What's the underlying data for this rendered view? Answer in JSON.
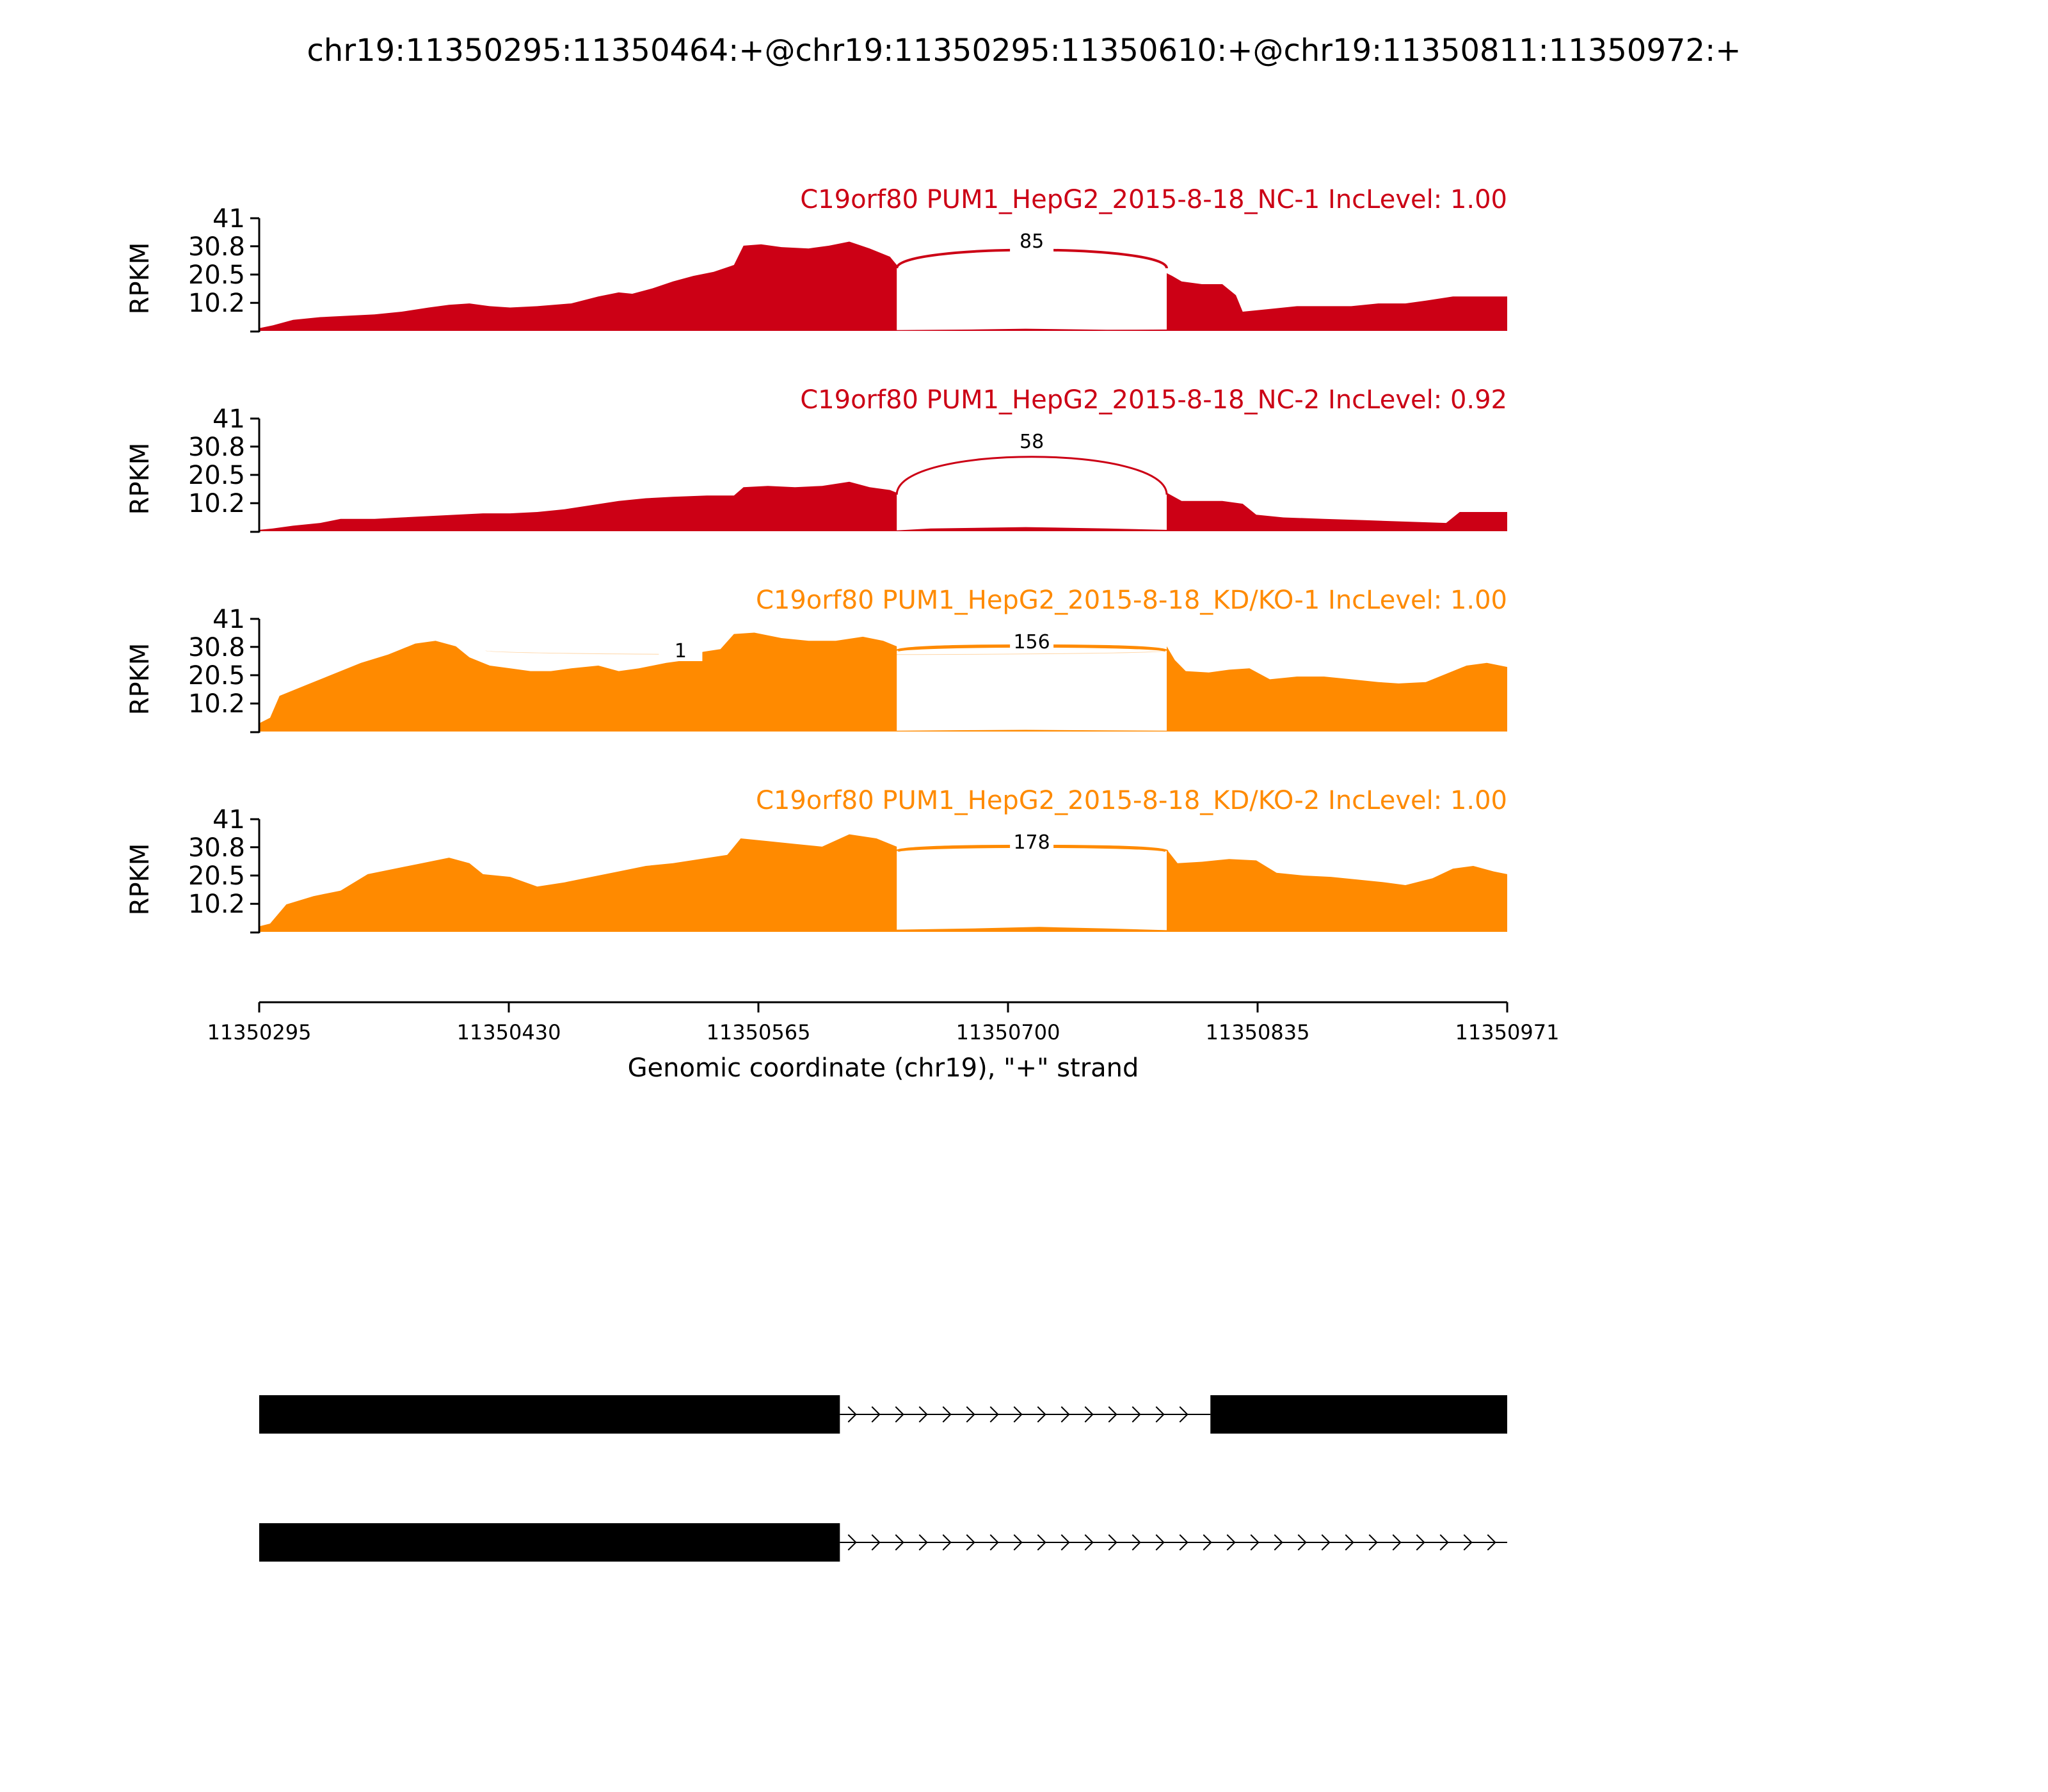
{
  "title": "chr19:11350295:11350464:+@chr19:11350295:11350610:+@chr19:11350811:11350972:+",
  "colors": {
    "nc": "#cc0015",
    "kd": "#ff8a00",
    "axis": "#000000",
    "exon": "#000000"
  },
  "chart_data": {
    "type": "area",
    "ylabel": "RPKM",
    "yticks": [
      "41",
      "30.8",
      "20.5",
      "10.2"
    ],
    "ylim": [
      0,
      41
    ],
    "xlim": [
      11350295,
      11350971
    ],
    "xlabel": "Genomic coordinate (chr19), \"+\" strand",
    "xticks": [
      "11350295",
      "11350430",
      "11350565",
      "11350700",
      "11350835",
      "11350971"
    ],
    "panels": [
      {
        "title": "C19orf80 PUM1_HepG2_2015-8-18_NC-1 IncLevel: 1.00",
        "group": "nc",
        "coverage": [
          [
            11350295,
            1
          ],
          [
            11350305,
            2
          ],
          [
            11350320,
            4
          ],
          [
            11350340,
            5
          ],
          [
            11350360,
            5.5
          ],
          [
            11350380,
            6
          ],
          [
            11350400,
            7
          ],
          [
            11350420,
            8.5
          ],
          [
            11350435,
            9.5
          ],
          [
            11350450,
            10
          ],
          [
            11350465,
            9
          ],
          [
            11350480,
            8.5
          ],
          [
            11350500,
            9
          ],
          [
            11350525,
            10
          ],
          [
            11350545,
            12.5
          ],
          [
            11350560,
            14
          ],
          [
            11350570,
            13.5
          ],
          [
            11350585,
            15.5
          ],
          [
            11350600,
            18
          ],
          [
            11350615,
            20
          ],
          [
            11350630,
            21.5
          ],
          [
            11350645,
            24
          ],
          [
            11350652,
            31
          ],
          [
            11350665,
            31.5
          ],
          [
            11350680,
            30.5
          ],
          [
            11350700,
            30
          ],
          [
            11350715,
            31
          ],
          [
            11350730,
            32.5
          ],
          [
            11350745,
            30
          ],
          [
            11350760,
            27
          ],
          [
            11350765,
            24
          ]
        ],
        "intron_coverage": [
          [
            11350765,
            0.3
          ],
          [
            11350820,
            0.5
          ],
          [
            11350860,
            0.8
          ],
          [
            11350920,
            0.4
          ],
          [
            11350964,
            0.5
          ]
        ],
        "coverage_tail": [
          [
            11350964,
            21
          ],
          [
            11350968,
            20
          ],
          [
            11350975,
            18
          ],
          [
            11350990,
            17
          ],
          [
            11351005,
            17
          ],
          [
            11351015,
            13
          ],
          [
            11351020,
            7
          ],
          [
            11351040,
            8
          ],
          [
            11351060,
            9
          ],
          [
            11351080,
            9
          ],
          [
            11351100,
            9
          ],
          [
            11351120,
            10
          ],
          [
            11351140,
            10
          ],
          [
            11351155,
            11
          ],
          [
            11351175,
            12.5
          ],
          [
            11351195,
            12.5
          ],
          [
            11351215,
            12.5
          ]
        ],
        "junctions": [
          {
            "start": 11350765,
            "end": 11350964,
            "count": "85",
            "weight": 4
          }
        ]
      },
      {
        "title": "C19orf80 PUM1_HepG2_2015-8-18_NC-2 IncLevel: 0.92",
        "group": "nc",
        "coverage": [
          [
            11350295,
            0.5
          ],
          [
            11350305,
            1
          ],
          [
            11350320,
            2
          ],
          [
            11350340,
            3
          ],
          [
            11350355,
            4.5
          ],
          [
            11350380,
            4.5
          ],
          [
            11350400,
            5
          ],
          [
            11350420,
            5.5
          ],
          [
            11350440,
            6
          ],
          [
            11350460,
            6.5
          ],
          [
            11350480,
            6.5
          ],
          [
            11350500,
            7
          ],
          [
            11350520,
            8
          ],
          [
            11350540,
            9.5
          ],
          [
            11350560,
            11
          ],
          [
            11350580,
            12
          ],
          [
            11350600,
            12.5
          ],
          [
            11350625,
            13
          ],
          [
            11350645,
            13
          ],
          [
            11350652,
            16
          ],
          [
            11350670,
            16.5
          ],
          [
            11350690,
            16
          ],
          [
            11350710,
            16.5
          ],
          [
            11350730,
            18
          ],
          [
            11350745,
            16
          ],
          [
            11350760,
            15
          ],
          [
            11350765,
            14
          ]
        ],
        "intron_coverage": [
          [
            11350765,
            0.3
          ],
          [
            11350790,
            1
          ],
          [
            11350860,
            1.5
          ],
          [
            11350920,
            1
          ],
          [
            11350964,
            0.5
          ]
        ],
        "coverage_tail": [
          [
            11350964,
            14
          ],
          [
            11350975,
            11
          ],
          [
            11350990,
            11
          ],
          [
            11351005,
            11
          ],
          [
            11351020,
            10
          ],
          [
            11351030,
            6
          ],
          [
            11351050,
            5
          ],
          [
            11351080,
            4.5
          ],
          [
            11351110,
            4
          ],
          [
            11351140,
            3.5
          ],
          [
            11351170,
            3
          ],
          [
            11351180,
            7
          ],
          [
            11351200,
            7
          ],
          [
            11351215,
            7
          ]
        ],
        "junctions": [
          {
            "start": 11350765,
            "end": 11350964,
            "count": "58",
            "weight": 3
          }
        ]
      },
      {
        "title": "C19orf80 PUM1_HepG2_2015-8-18_KD/KO-1 IncLevel: 1.00",
        "group": "kd",
        "coverage": [
          [
            11350295,
            3
          ],
          [
            11350303,
            5
          ],
          [
            11350310,
            13
          ],
          [
            11350330,
            17
          ],
          [
            11350350,
            21
          ],
          [
            11350370,
            25
          ],
          [
            11350390,
            28
          ],
          [
            11350410,
            32
          ],
          [
            11350425,
            33
          ],
          [
            11350440,
            31
          ],
          [
            11350450,
            27
          ],
          [
            11350465,
            24
          ],
          [
            11350480,
            23
          ],
          [
            11350495,
            22
          ],
          [
            11350510,
            22
          ],
          [
            11350525,
            23
          ],
          [
            11350545,
            24
          ],
          [
            11350560,
            22
          ],
          [
            11350575,
            23
          ],
          [
            11350595,
            25
          ],
          [
            11350610,
            26
          ],
          [
            11350622,
            29
          ],
          [
            11350635,
            30
          ],
          [
            11350645,
            35.5
          ],
          [
            11350660,
            36
          ],
          [
            11350680,
            34
          ],
          [
            11350700,
            33
          ],
          [
            11350720,
            33
          ],
          [
            11350740,
            34.5
          ],
          [
            11350755,
            33
          ],
          [
            11350765,
            31
          ]
        ],
        "intron_coverage": [
          [
            11350765,
            0.3
          ],
          [
            11350820,
            0.5
          ],
          [
            11350860,
            0.6
          ],
          [
            11350920,
            0.4
          ],
          [
            11350964,
            0.3
          ]
        ],
        "coverage_tail": [
          [
            11350964,
            31
          ],
          [
            11350970,
            26
          ],
          [
            11350978,
            22
          ],
          [
            11350995,
            21.5
          ],
          [
            11351010,
            22.5
          ],
          [
            11351025,
            23
          ],
          [
            11351040,
            19
          ],
          [
            11351060,
            20
          ],
          [
            11351080,
            20
          ],
          [
            11351100,
            19
          ],
          [
            11351120,
            18
          ],
          [
            11351135,
            17.5
          ],
          [
            11351155,
            18
          ],
          [
            11351170,
            21
          ],
          [
            11351185,
            24
          ],
          [
            11351200,
            25
          ],
          [
            11351215,
            23.5
          ]
        ],
        "junctions": [
          {
            "start": 11350765,
            "end": 11350964,
            "count": "156",
            "weight": 5
          },
          {
            "start": 11350462,
            "end": 11350964,
            "count": "1",
            "weight": 1
          }
        ]
      },
      {
        "title": "C19orf80 PUM1_HepG2_2015-8-18_KD/KO-2 IncLevel: 1.00",
        "group": "kd",
        "coverage": [
          [
            11350295,
            2
          ],
          [
            11350303,
            3
          ],
          [
            11350315,
            10
          ],
          [
            11350335,
            13
          ],
          [
            11350355,
            15
          ],
          [
            11350375,
            21
          ],
          [
            11350395,
            23
          ],
          [
            11350415,
            25
          ],
          [
            11350435,
            27
          ],
          [
            11350450,
            25
          ],
          [
            11350460,
            21
          ],
          [
            11350480,
            20
          ],
          [
            11350500,
            16.5
          ],
          [
            11350520,
            18
          ],
          [
            11350540,
            20
          ],
          [
            11350560,
            22
          ],
          [
            11350580,
            24
          ],
          [
            11350600,
            25
          ],
          [
            11350620,
            26.5
          ],
          [
            11350640,
            28
          ],
          [
            11350650,
            34
          ],
          [
            11350670,
            33
          ],
          [
            11350690,
            32
          ],
          [
            11350710,
            31
          ],
          [
            11350730,
            35.5
          ],
          [
            11350750,
            34
          ],
          [
            11350765,
            31
          ]
        ],
        "intron_coverage": [
          [
            11350765,
            0.8
          ],
          [
            11350820,
            1.2
          ],
          [
            11350870,
            1.8
          ],
          [
            11350920,
            1.2
          ],
          [
            11350964,
            0.6
          ]
        ],
        "coverage_tail": [
          [
            11350964,
            30
          ],
          [
            11350972,
            25
          ],
          [
            11350990,
            25.5
          ],
          [
            11351010,
            26.5
          ],
          [
            11351030,
            26
          ],
          [
            11351045,
            21.5
          ],
          [
            11351065,
            20.5
          ],
          [
            11351085,
            20
          ],
          [
            11351105,
            19
          ],
          [
            11351125,
            18
          ],
          [
            11351140,
            17
          ],
          [
            11351160,
            19.5
          ],
          [
            11351175,
            23
          ],
          [
            11351190,
            24
          ],
          [
            11351205,
            22
          ],
          [
            11351215,
            21
          ]
        ],
        "junctions": [
          {
            "start": 11350765,
            "end": 11350964,
            "count": "178",
            "weight": 5
          }
        ]
      }
    ],
    "transcripts": [
      {
        "exons": [
          [
            11350295,
            11350610
          ],
          [
            11350811,
            11350972
          ]
        ],
        "intron": [
          11350610,
          11350811
        ]
      },
      {
        "exons": [
          [
            11350295,
            11350610
          ]
        ],
        "intron": [
          11350610,
          11350972
        ]
      }
    ]
  }
}
